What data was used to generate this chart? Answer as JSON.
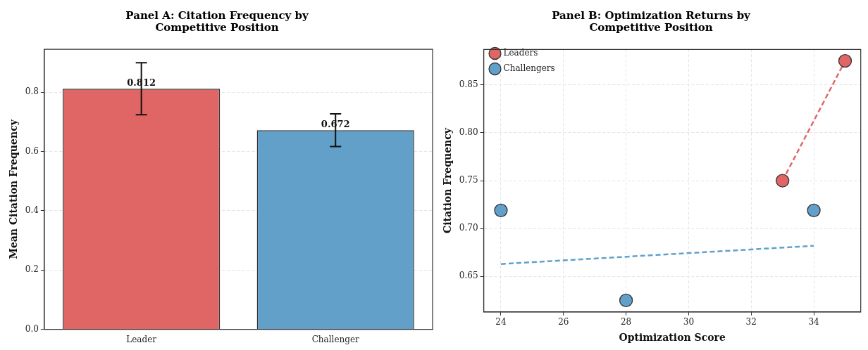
{
  "chart_data": [
    {
      "type": "bar",
      "title": "Panel A: Citation Frequency by Competitive Position",
      "ylabel": "Mean Citation Frequency",
      "categories": [
        "Leader",
        "Challenger"
      ],
      "values": [
        0.812,
        0.672
      ],
      "colors": [
        "#e06666",
        "#62a0ca"
      ],
      "errors": [
        0.088,
        0.055
      ],
      "data_labels": true,
      "ylim": [
        0,
        0.945
      ],
      "yticks": [
        {
          "value": 0,
          "label": "0.0"
        },
        0.2,
        0.4,
        0.6,
        0.8
      ],
      "grid": "y",
      "legend": false
    },
    {
      "type": "scatter",
      "title": "Panel B: Optimization Returns by Competitive Position",
      "xlabel": "Optimization Score",
      "ylabel": "Citation Frequency",
      "marker": "circle",
      "grid": true,
      "legend": "top left",
      "xlim": [
        23.45,
        35.5
      ],
      "xticks": [
        24,
        26,
        28,
        30,
        32,
        34
      ],
      "ylim": [
        0.613,
        0.887
      ],
      "yticks": [
        0.65,
        {
          "value": 0.7,
          "label": "0.70"
        },
        0.75,
        {
          "value": 0.8,
          "label": "0.80"
        },
        0.85
      ],
      "series": [
        {
          "name": "Leaders",
          "color": "#e06666",
          "x": [
            33,
            35
          ],
          "values": [
            0.75,
            0.875
          ]
        },
        {
          "name": "Challengers",
          "color": "#62a0ca",
          "x": [
            24,
            28,
            34
          ],
          "values": [
            0.719,
            0.625,
            0.719
          ]
        },
        {
          "type": "line",
          "color": "#e06666",
          "x": [
            33,
            35
          ],
          "values": [
            0.75,
            0.875
          ],
          "line_style": "dashed",
          "marker": "none"
        },
        {
          "type": "line",
          "color": "#62a0ca",
          "x": [
            24,
            34
          ],
          "values": [
            0.663,
            0.682
          ],
          "line_style": "dashed",
          "marker": "none"
        }
      ]
    }
  ]
}
